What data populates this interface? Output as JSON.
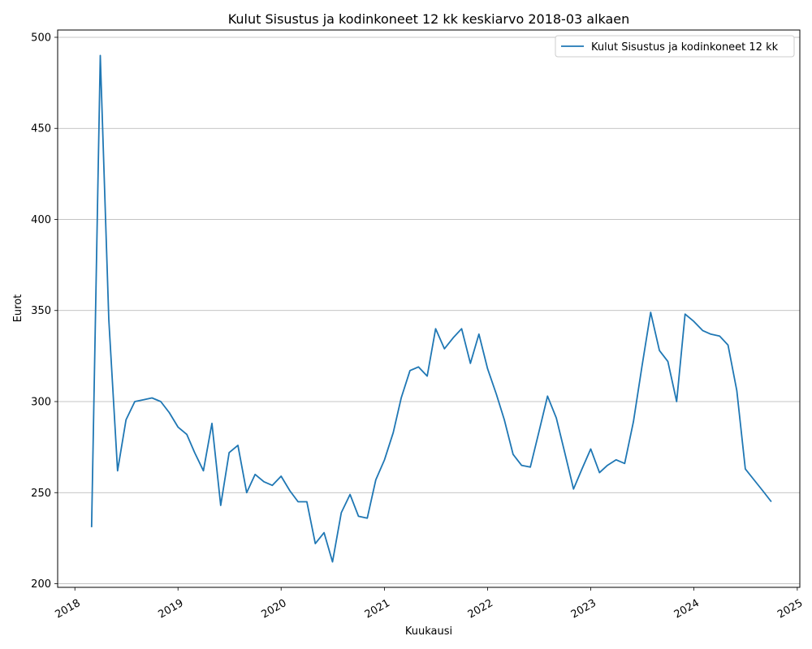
{
  "chart_data": {
    "type": "line",
    "title": "Kulut Sisustus ja kodinkoneet 12 kk keskiarvo 2018-03 alkaen",
    "xlabel": "Kuukausi",
    "ylabel": "Eurot",
    "x_ticks": [
      "2018",
      "2019",
      "2020",
      "2021",
      "2022",
      "2023",
      "2024",
      "2025"
    ],
    "y_ticks": [
      200,
      250,
      300,
      350,
      400,
      450,
      500
    ],
    "xlim": [
      "2017-11-01",
      "2025-01-10"
    ],
    "ylim": [
      198,
      504
    ],
    "grid": "horizontal",
    "legend_position": "top-right",
    "color": "#1f77b4",
    "series": [
      {
        "name": "Kulut Sisustus ja kodinkoneet 12 kk",
        "x": [
          "2018-03",
          "2018-04",
          "2018-05",
          "2018-06",
          "2018-07",
          "2018-08",
          "2018-09",
          "2018-10",
          "2018-11",
          "2018-12",
          "2019-01",
          "2019-02",
          "2019-03",
          "2019-04",
          "2019-05",
          "2019-06",
          "2019-07",
          "2019-08",
          "2019-09",
          "2019-10",
          "2019-11",
          "2019-12",
          "2020-01",
          "2020-02",
          "2020-03",
          "2020-04",
          "2020-05",
          "2020-06",
          "2020-07",
          "2020-08",
          "2020-09",
          "2020-10",
          "2020-11",
          "2020-12",
          "2021-01",
          "2021-02",
          "2021-03",
          "2021-04",
          "2021-05",
          "2021-06",
          "2021-07",
          "2021-08",
          "2021-09",
          "2021-10",
          "2021-11",
          "2021-12",
          "2022-01",
          "2022-02",
          "2022-03",
          "2022-04",
          "2022-05",
          "2022-06",
          "2022-07",
          "2022-08",
          "2022-09",
          "2022-10",
          "2022-11",
          "2022-12",
          "2023-01",
          "2023-02",
          "2023-03",
          "2023-04",
          "2023-05",
          "2023-06",
          "2023-07",
          "2023-08",
          "2023-09",
          "2023-10",
          "2023-11",
          "2023-12",
          "2024-01",
          "2024-02",
          "2024-03",
          "2024-04",
          "2024-05",
          "2024-06",
          "2024-07",
          "2024-08",
          "2024-09",
          "2024-10"
        ],
        "values": [
          231,
          490,
          345,
          262,
          290,
          300,
          301,
          302,
          300,
          294,
          286,
          282,
          272,
          262,
          288,
          243,
          272,
          276,
          250,
          260,
          256,
          254,
          259,
          251,
          245,
          245,
          222,
          228,
          212,
          239,
          249,
          237,
          236,
          257,
          268,
          283,
          302,
          317,
          319,
          314,
          340,
          329,
          335,
          340,
          321,
          337,
          318,
          304,
          290,
          271,
          265,
          264,
          283,
          303,
          291,
          272,
          252,
          263,
          274,
          261,
          265,
          268,
          266,
          289,
          319,
          349,
          328,
          322,
          300,
          348,
          344,
          339,
          337,
          336,
          331,
          306,
          263,
          257,
          251,
          245
        ]
      }
    ]
  }
}
